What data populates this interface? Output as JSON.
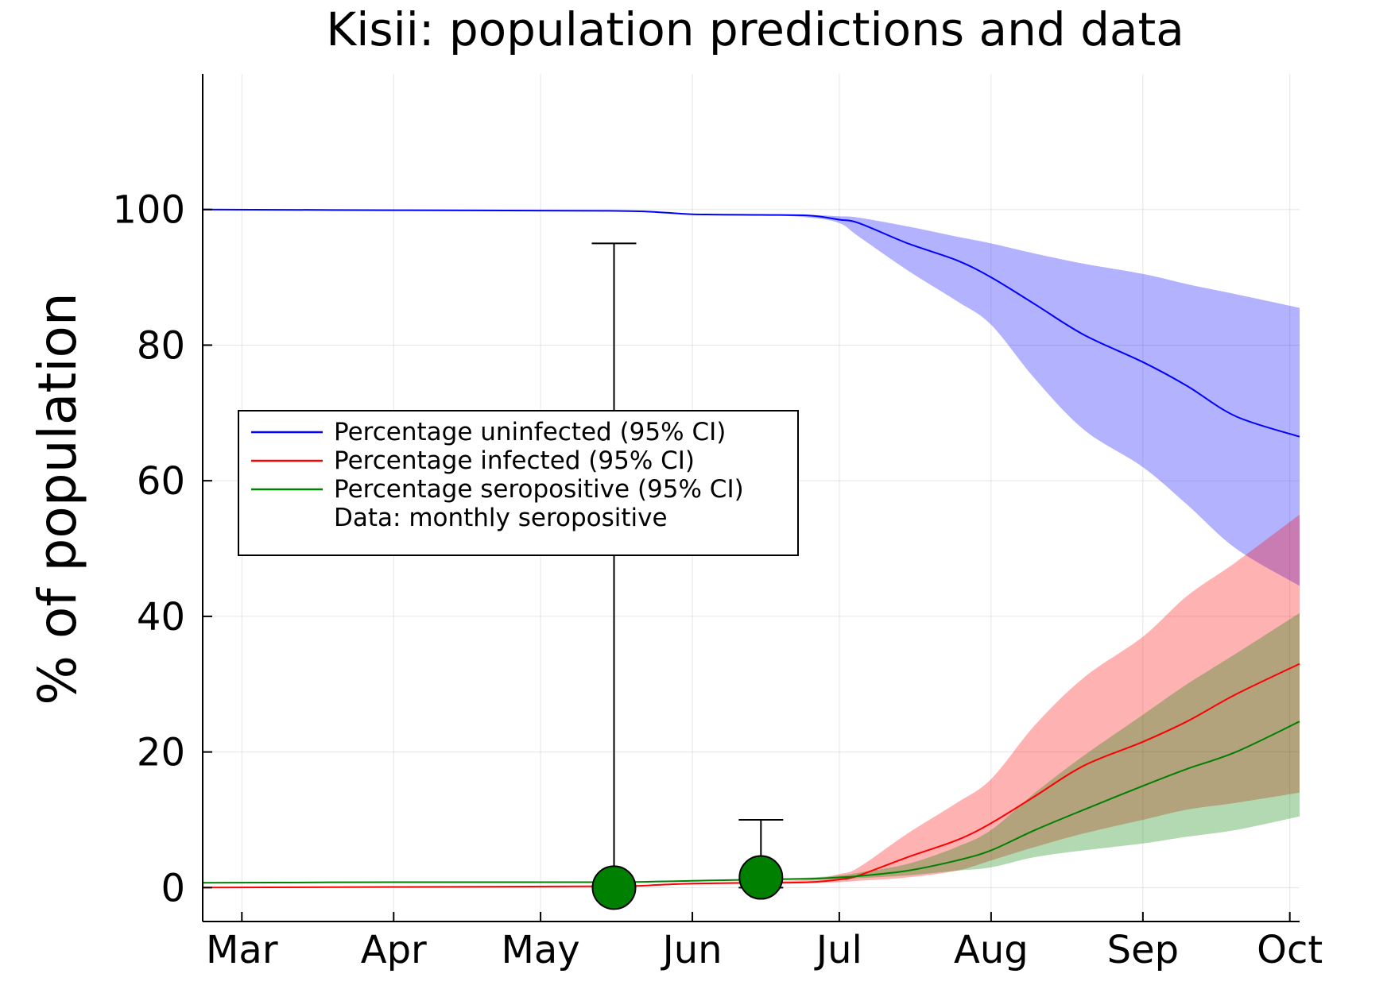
{
  "chart_data": {
    "type": "line",
    "title": "Kisii: population predictions and data",
    "xlabel": "",
    "ylabel": "% of population",
    "xlim": [
      "2020-02-22",
      "2020-10-03"
    ],
    "ylim": [
      -5,
      120
    ],
    "x_ticks": [
      {
        "label": "Mar",
        "date": "2020-03-01"
      },
      {
        "label": "Apr",
        "date": "2020-04-01"
      },
      {
        "label": "May",
        "date": "2020-05-01"
      },
      {
        "label": "Jun",
        "date": "2020-06-01"
      },
      {
        "label": "Jul",
        "date": "2020-07-01"
      },
      {
        "label": "Aug",
        "date": "2020-08-01"
      },
      {
        "label": "Sep",
        "date": "2020-09-01"
      },
      {
        "label": "Oct",
        "date": "2020-10-01"
      }
    ],
    "y_ticks": [
      0,
      20,
      40,
      60,
      80,
      100
    ],
    "grid": true,
    "legend_position": "center-left",
    "series": [
      {
        "name": "Percentage uninfected (95% CI)",
        "color": "#0000ff",
        "band_color": "#0000ff",
        "x": [
          "2020-02-22",
          "2020-04-01",
          "2020-05-15",
          "2020-05-25",
          "2020-06-01",
          "2020-06-15",
          "2020-06-25",
          "2020-07-01",
          "2020-07-05",
          "2020-07-15",
          "2020-07-25",
          "2020-08-01",
          "2020-08-10",
          "2020-08-20",
          "2020-09-01",
          "2020-09-10",
          "2020-09-20",
          "2020-10-03"
        ],
        "values": [
          100,
          99.9,
          99.8,
          99.6,
          99.3,
          99.2,
          99.1,
          98.5,
          98,
          95,
          92.5,
          90,
          86,
          81.5,
          77.5,
          74,
          69.5,
          66.5
        ],
        "lower": [
          100,
          99.9,
          99.8,
          99.6,
          99.3,
          99.2,
          98.8,
          98,
          96,
          91,
          86.5,
          83,
          75,
          67.5,
          62,
          56.5,
          50,
          44.5
        ],
        "upper": [
          100,
          99.9,
          99.8,
          99.6,
          99.3,
          99.3,
          99.2,
          99,
          98.8,
          97.5,
          96,
          95,
          93.5,
          92,
          90.5,
          89,
          87.5,
          85.5
        ]
      },
      {
        "name": "Percentage infected (95% CI)",
        "color": "#ff0000",
        "band_color": "#ff0000",
        "x": [
          "2020-02-22",
          "2020-04-01",
          "2020-05-15",
          "2020-05-25",
          "2020-06-01",
          "2020-06-15",
          "2020-06-25",
          "2020-07-01",
          "2020-07-05",
          "2020-07-15",
          "2020-07-25",
          "2020-08-01",
          "2020-08-10",
          "2020-08-20",
          "2020-09-01",
          "2020-09-10",
          "2020-09-20",
          "2020-10-03"
        ],
        "values": [
          0,
          0.1,
          0.2,
          0.4,
          0.6,
          0.7,
          0.8,
          1.2,
          1.8,
          4.5,
          7,
          9.5,
          13.5,
          18,
          21.5,
          24.5,
          28.5,
          33
        ],
        "lower": [
          0,
          0.1,
          0.2,
          0.3,
          0.5,
          0.6,
          0.7,
          0.8,
          1,
          1.5,
          2.5,
          4,
          6,
          8,
          10,
          11.5,
          12.5,
          14
        ],
        "upper": [
          0,
          0.1,
          0.2,
          0.4,
          0.7,
          0.9,
          1.2,
          2,
          3,
          8,
          12.5,
          16,
          24,
          31,
          37,
          43,
          48,
          55
        ]
      },
      {
        "name": "Percentage seropositive (95% CI)",
        "color": "#008000",
        "band_color": "#008000",
        "x": [
          "2020-02-22",
          "2020-04-01",
          "2020-05-15",
          "2020-05-25",
          "2020-06-01",
          "2020-06-15",
          "2020-06-25",
          "2020-07-01",
          "2020-07-05",
          "2020-07-15",
          "2020-07-25",
          "2020-08-01",
          "2020-08-10",
          "2020-08-20",
          "2020-09-01",
          "2020-09-10",
          "2020-09-20",
          "2020-10-03"
        ],
        "values": [
          0.7,
          0.8,
          0.8,
          0.9,
          1.0,
          1.2,
          1.3,
          1.5,
          1.7,
          2.5,
          4,
          5.5,
          8.5,
          11.5,
          15,
          17.5,
          20,
          24.5
        ],
        "lower": [
          0.7,
          0.8,
          0.8,
          0.9,
          1.0,
          1.1,
          1.2,
          1.3,
          1.4,
          1.8,
          2.5,
          3,
          4.5,
          5.5,
          6.5,
          7.5,
          8.5,
          10.5
        ],
        "upper": [
          0.7,
          0.8,
          0.8,
          0.9,
          1.0,
          1.3,
          1.5,
          1.8,
          2.2,
          3.5,
          6,
          8.5,
          14,
          19.5,
          25.5,
          30,
          34.5,
          40.5
        ]
      }
    ],
    "data_points": {
      "name": "Data: monthly seropositive",
      "color": "#008000",
      "points": [
        {
          "x": "2020-05-16",
          "y": 0,
          "err_low": 0,
          "err_high": 95
        },
        {
          "x": "2020-06-15",
          "y": 1.5,
          "err_low": 0,
          "err_high": 10
        }
      ]
    },
    "legend": [
      {
        "label": "Percentage uninfected (95% CI)",
        "color": "#0000ff",
        "has_line": true
      },
      {
        "label": "Percentage infected (95% CI)",
        "color": "#ff0000",
        "has_line": true
      },
      {
        "label": "Percentage seropositive (95% CI)",
        "color": "#008000",
        "has_line": true
      },
      {
        "label": "Data: monthly seropositive",
        "color": "#008000",
        "has_line": false
      }
    ]
  }
}
